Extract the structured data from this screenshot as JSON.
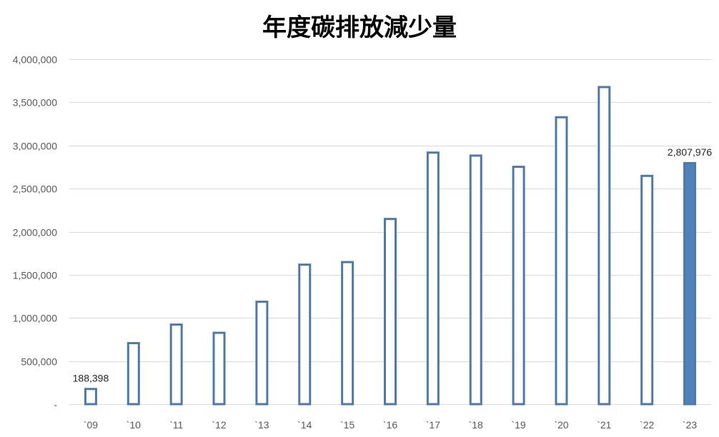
{
  "chart_data": {
    "type": "bar",
    "title": "年度碳排放減少量",
    "xlabel": "",
    "ylabel": "",
    "categories": [
      "`09",
      "`10",
      "`11",
      "`12",
      "`13",
      "`14",
      "`15",
      "`16",
      "`17",
      "`18",
      "`19",
      "`20",
      "`21",
      "`22",
      "`23"
    ],
    "series": [
      {
        "values": [
          188398,
          720000,
          935000,
          840000,
          1200000,
          1630000,
          1660000,
          2160000,
          2930000,
          2895000,
          2765000,
          3340000,
          3690000,
          2660000,
          2807976
        ]
      }
    ],
    "ylim": [
      0,
      4000000
    ],
    "yticks": [
      0,
      500000,
      1000000,
      1500000,
      2000000,
      2500000,
      3000000,
      3500000,
      4000000
    ],
    "ytick_labels": [
      "-",
      "500,000",
      "1,000,000",
      "1,500,000",
      "2,000,000",
      "2,500,000",
      "3,000,000",
      "3,500,000",
      "4,000,000"
    ],
    "data_labels": [
      {
        "category": "`09",
        "text": "188,398"
      },
      {
        "category": "`23",
        "text": "2,807,976"
      }
    ],
    "highlight_category": "`23",
    "grid": true,
    "legend": "none",
    "colors": {
      "bar_outline": "#4f7aa6",
      "bar_fill": "#ffffff",
      "highlight_fill": "#4f81bd",
      "grid": "#d9d9d9"
    }
  }
}
